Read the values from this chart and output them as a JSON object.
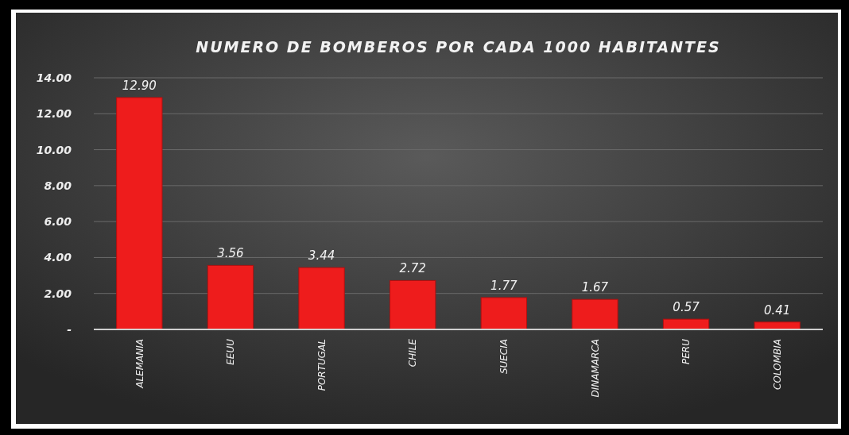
{
  "chart_data": {
    "type": "bar",
    "title": "NUMERO DE BOMBEROS POR CADA 1000 HABITANTES",
    "categories": [
      "ALEMANIA",
      "EEUU",
      "PORTUGAL",
      "CHILE",
      "SUECIA",
      "DINAMARCA",
      "PERU",
      "COLOMBIA"
    ],
    "values": [
      12.9,
      3.56,
      3.44,
      2.72,
      1.77,
      1.67,
      0.57,
      0.41
    ],
    "color": "#ee1c1c",
    "ylim": [
      0,
      14
    ],
    "yticks": [
      {
        "value": 0,
        "label": "-"
      },
      {
        "value": 2,
        "label": "2.00"
      },
      {
        "value": 4,
        "label": "4.00"
      },
      {
        "value": 6,
        "label": "6.00"
      },
      {
        "value": 8,
        "label": "8.00"
      },
      {
        "value": 10,
        "label": "10.00"
      },
      {
        "value": 12,
        "label": "12.00"
      },
      {
        "value": 14,
        "label": "14.00"
      }
    ],
    "value_labels": [
      "12.90",
      "3.56",
      "3.44",
      "2.72",
      "1.77",
      "1.67",
      "0.57",
      "0.41"
    ],
    "grid": "y"
  }
}
